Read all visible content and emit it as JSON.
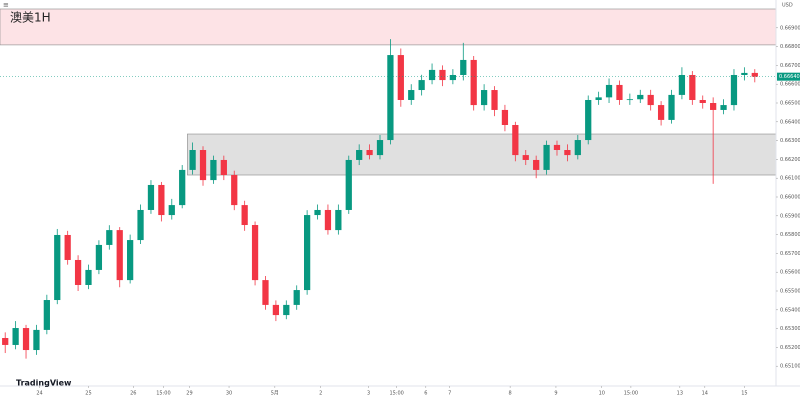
{
  "chart_data": {
    "type": "candlestick",
    "title": "澳美1H",
    "currency": "USD",
    "logo": "TradingView",
    "up_color": "#089981",
    "down_color": "#f23645",
    "open": [
      0.6525,
      0.65213,
      0.65303,
      0.65186,
      0.65293,
      0.65452,
      0.65798,
      0.65665,
      0.65532,
      0.65612,
      0.65745,
      0.65824,
      0.65558,
      0.65771,
      0.65931,
      0.66064,
      0.65904,
      0.65957,
      0.66144,
      0.6625,
      0.6609,
      0.66197,
      0.66117,
      0.65957,
      0.65851,
      0.65558,
      0.65426,
      0.65372,
      0.65426,
      0.65505,
      0.65904,
      0.65931,
      0.65824,
      0.65931,
      0.66197,
      0.6625,
      0.66223,
      0.66303,
      0.66755,
      0.66516,
      0.66569,
      0.66622,
      0.66676,
      0.66622,
      0.66649,
      0.66729,
      0.66489,
      0.66569,
      0.66463,
      0.66383,
      0.66223,
      0.66197,
      0.66144,
      0.66277,
      0.6625,
      0.66223,
      0.66303,
      0.66516,
      0.6653,
      0.66596,
      0.66516,
      0.6652,
      0.66543,
      0.66489,
      0.6641,
      0.66543,
      0.66649,
      0.66516,
      0.665,
      0.66463,
      0.66489,
      0.66649,
      0.6666
    ],
    "high": [
      0.6528,
      0.6534,
      0.6532,
      0.6532,
      0.6548,
      0.6583,
      0.6582,
      0.6569,
      0.6564,
      0.6577,
      0.6585,
      0.6584,
      0.658,
      0.6596,
      0.6609,
      0.6608,
      0.6599,
      0.6617,
      0.6629,
      0.6627,
      0.6622,
      0.6622,
      0.6614,
      0.6598,
      0.6587,
      0.6558,
      0.6545,
      0.6545,
      0.6553,
      0.6593,
      0.6596,
      0.6596,
      0.6596,
      0.6622,
      0.6628,
      0.6628,
      0.6633,
      0.6684,
      0.6679,
      0.666,
      0.6665,
      0.6671,
      0.667,
      0.6668,
      0.6682,
      0.6675,
      0.666,
      0.6659,
      0.6649,
      0.664,
      0.6625,
      0.6622,
      0.663,
      0.663,
      0.6628,
      0.6633,
      0.6654,
      0.6656,
      0.6663,
      0.6662,
      0.6655,
      0.6657,
      0.6657,
      0.6651,
      0.6657,
      0.6669,
      0.6667,
      0.6654,
      0.6653,
      0.6652,
      0.6668,
      0.6669,
      0.6668
    ],
    "low": [
      0.6517,
      0.6519,
      0.6514,
      0.6516,
      0.6527,
      0.6543,
      0.6564,
      0.655,
      0.6551,
      0.6559,
      0.6572,
      0.6552,
      0.6554,
      0.6575,
      0.6591,
      0.6587,
      0.6588,
      0.6594,
      0.6612,
      0.6606,
      0.6607,
      0.6609,
      0.6593,
      0.6582,
      0.6553,
      0.654,
      0.6534,
      0.6535,
      0.654,
      0.6548,
      0.6588,
      0.658,
      0.658,
      0.6591,
      0.6617,
      0.662,
      0.662,
      0.6628,
      0.6648,
      0.6649,
      0.6654,
      0.666,
      0.6659,
      0.666,
      0.6662,
      0.6646,
      0.6646,
      0.6643,
      0.6635,
      0.6619,
      0.6617,
      0.661,
      0.6612,
      0.6622,
      0.6619,
      0.662,
      0.6628,
      0.6649,
      0.665,
      0.6649,
      0.6649,
      0.665,
      0.6646,
      0.6638,
      0.6639,
      0.6652,
      0.6649,
      0.6647,
      0.6607,
      0.6644,
      0.6646,
      0.6662,
      0.6661
    ],
    "close": [
      0.65213,
      0.65303,
      0.65186,
      0.65293,
      0.65452,
      0.65798,
      0.65665,
      0.65532,
      0.65612,
      0.65745,
      0.65824,
      0.65558,
      0.65771,
      0.65931,
      0.66064,
      0.65904,
      0.65957,
      0.66144,
      0.6625,
      0.6609,
      0.66197,
      0.66117,
      0.65957,
      0.65851,
      0.65558,
      0.65426,
      0.65372,
      0.65426,
      0.65505,
      0.65904,
      0.65931,
      0.65824,
      0.65931,
      0.66197,
      0.6625,
      0.66223,
      0.66303,
      0.66755,
      0.66516,
      0.66569,
      0.66622,
      0.66676,
      0.66622,
      0.66649,
      0.66729,
      0.66489,
      0.66569,
      0.66463,
      0.66383,
      0.66223,
      0.66197,
      0.66144,
      0.66277,
      0.6625,
      0.66223,
      0.66303,
      0.66516,
      0.6653,
      0.66596,
      0.66516,
      0.6652,
      0.66543,
      0.66489,
      0.6641,
      0.66543,
      0.66649,
      0.66516,
      0.665,
      0.66463,
      0.66489,
      0.66649,
      0.6666,
      0.6664
    ],
    "last_price_label": "0.66640",
    "zones": [
      {
        "high": 0.67,
        "low": 0.66809,
        "start": 0,
        "color": "#fde3e6"
      },
      {
        "high": 0.66335,
        "low": 0.66117,
        "start": 18,
        "color": "#e0e0e0"
      }
    ],
    "ylim": [
      0.65,
      0.67
    ],
    "yticks": [
      {
        "value": 0.651,
        "label": "0.65100"
      },
      {
        "value": 0.652,
        "label": "0.65200"
      },
      {
        "value": 0.653,
        "label": "0.65300"
      },
      {
        "value": 0.654,
        "label": "0.65400"
      },
      {
        "value": 0.655,
        "label": "0.65500"
      },
      {
        "value": 0.656,
        "label": "0.65600"
      },
      {
        "value": 0.657,
        "label": "0.65700"
      },
      {
        "value": 0.658,
        "label": "0.65800"
      },
      {
        "value": 0.659,
        "label": "0.65900"
      },
      {
        "value": 0.66,
        "label": "0.66000"
      },
      {
        "value": 0.661,
        "label": "0.66100"
      },
      {
        "value": 0.662,
        "label": "0.66200"
      },
      {
        "value": 0.663,
        "label": "0.66300"
      },
      {
        "value": 0.664,
        "label": "0.66400"
      },
      {
        "value": 0.665,
        "label": "0.66500"
      },
      {
        "value": 0.666,
        "label": "0.66600"
      },
      {
        "value": 0.667,
        "label": "0.66700"
      },
      {
        "value": 0.668,
        "label": "0.66800"
      },
      {
        "value": 0.669,
        "label": "0.66900"
      }
    ],
    "xticks": [
      {
        "value": 3.3,
        "label": "24"
      },
      {
        "value": 8,
        "label": "25"
      },
      {
        "value": 12.3,
        "label": "26"
      },
      {
        "value": 15.2,
        "label": "15:00"
      },
      {
        "value": 17.7,
        "label": "29"
      },
      {
        "value": 21.5,
        "label": "30"
      },
      {
        "value": 25.9,
        "label": "5月"
      },
      {
        "value": 30.3,
        "label": "2"
      },
      {
        "value": 34.9,
        "label": "3"
      },
      {
        "value": 37.6,
        "label": "15:00"
      },
      {
        "value": 40.4,
        "label": "6"
      },
      {
        "value": 42.7,
        "label": "7"
      },
      {
        "value": 48.5,
        "label": "8"
      },
      {
        "value": 52.9,
        "label": "9"
      },
      {
        "value": 57.3,
        "label": "10"
      },
      {
        "value": 60.1,
        "label": "15:00"
      },
      {
        "value": 64.8,
        "label": "13"
      },
      {
        "value": 67.2,
        "label": "14"
      },
      {
        "value": 71,
        "label": "15"
      }
    ]
  }
}
